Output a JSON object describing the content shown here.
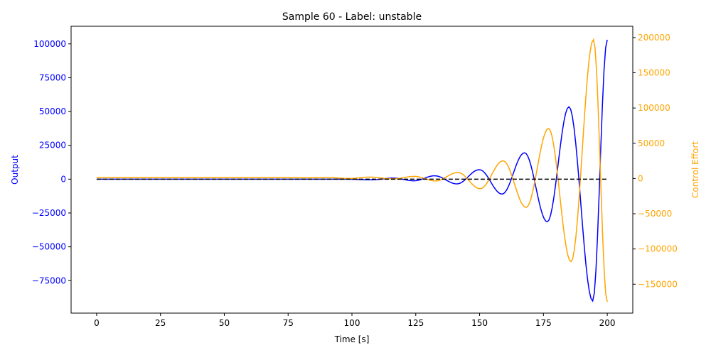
{
  "chart_data": {
    "type": "line",
    "title": "Sample 60 - Label: unstable",
    "xlabel": "Time [s]",
    "ylabel_left": "Output",
    "ylabel_right": "Control Effort",
    "xlim": [
      -10,
      210
    ],
    "ylim_left": [
      -99000,
      113000
    ],
    "ylim_right": [
      -191000,
      216000
    ],
    "x_ticks": [
      0,
      25,
      50,
      75,
      100,
      125,
      150,
      175,
      200
    ],
    "x_tick_labels": [
      "0",
      "25",
      "50",
      "75",
      "100",
      "125",
      "150",
      "175",
      "200"
    ],
    "y_left_ticks": [
      -75000,
      -50000,
      -25000,
      0,
      25000,
      50000,
      75000,
      100000
    ],
    "y_left_tick_labels": [
      "−75000",
      "−50000",
      "−25000",
      "0",
      "25000",
      "50000",
      "75000",
      "100000"
    ],
    "y_right_ticks": [
      -150000,
      -100000,
      -50000,
      0,
      50000,
      100000,
      150000,
      200000
    ],
    "y_right_tick_labels": [
      "−150000",
      "−100000",
      "−50000",
      "0",
      "50000",
      "100000",
      "150000",
      "200000"
    ],
    "grid": false,
    "colors": {
      "output": "#0000ff",
      "control": "#ffa500",
      "reference": "#000000",
      "axis": "#000000"
    },
    "series": [
      {
        "axis": "left",
        "style": "solid",
        "x": [
          0,
          50,
          90,
          98.5,
          107.4,
          116.1,
          124.3,
          132.4,
          141.1,
          149.9,
          158.8,
          167.6,
          176.5,
          185.0,
          194.3,
          200
        ],
        "y": [
          0,
          0,
          0,
          0,
          -500,
          800,
          -1200,
          2500,
          -3500,
          7000,
          -11000,
          19500,
          -31500,
          53500,
          -90000,
          103000
        ]
      },
      {
        "axis": "right",
        "style": "solid",
        "x": [
          0,
          75,
          82,
          90,
          99,
          107,
          116,
          124.5,
          132.7,
          141.5,
          150.2,
          159.2,
          168.2,
          177,
          185.8,
          194.6,
          200
        ],
        "y": [
          1500,
          1500,
          1000,
          1500,
          0,
          2000,
          -500,
          3000,
          -3500,
          8500,
          -14500,
          25000,
          -41000,
          71000,
          -118000,
          197000,
          -175000
        ]
      },
      {
        "axis": "left",
        "style": "dashed",
        "x": [
          0,
          200
        ],
        "y": [
          0,
          0
        ]
      }
    ]
  }
}
